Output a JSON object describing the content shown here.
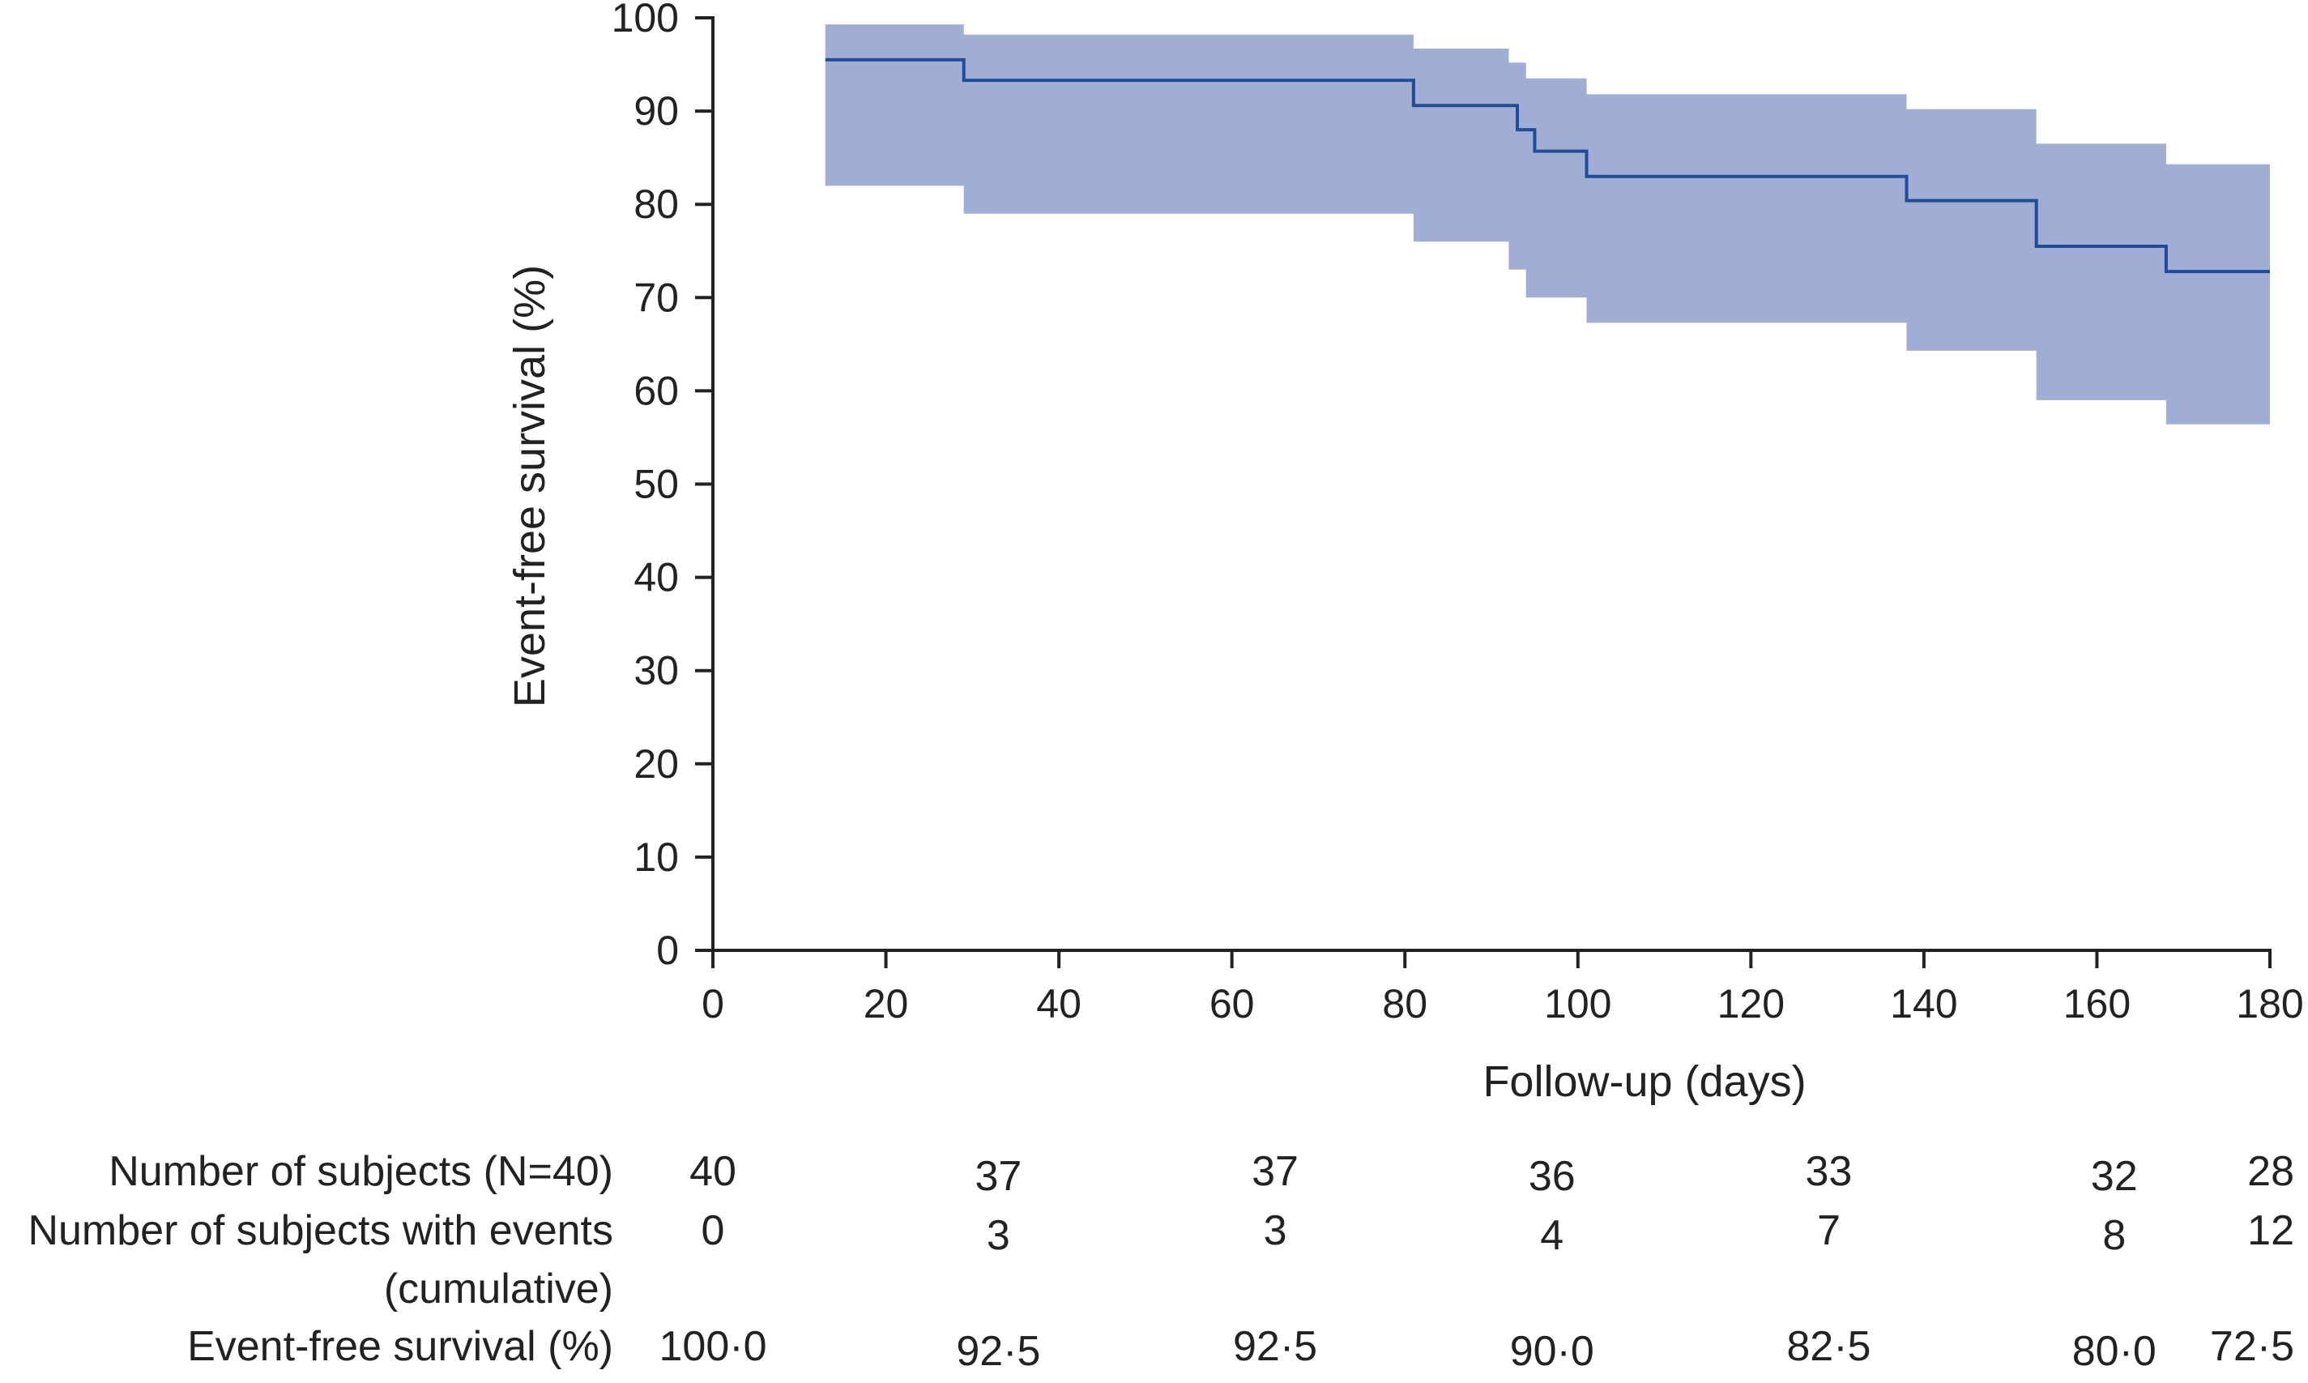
{
  "chart_data": {
    "type": "line",
    "subtype": "kaplan-meier-step",
    "title": "",
    "xlabel": "Follow-up (days)",
    "ylabel": "Event-free survival (%)",
    "xlim": [
      0,
      180
    ],
    "ylim": [
      0,
      100
    ],
    "x_ticks": [
      0,
      20,
      40,
      60,
      80,
      100,
      120,
      140,
      160,
      180
    ],
    "y_ticks": [
      0,
      10,
      20,
      30,
      40,
      50,
      60,
      70,
      80,
      90,
      100
    ],
    "grid": false,
    "colors": {
      "line": "#1f4e96",
      "band": "#a0aed5",
      "axis": "#222222"
    },
    "series": [
      {
        "name": "Event-free survival",
        "step_x": [
          13,
          29,
          81,
          93,
          95,
          101,
          138,
          153,
          168,
          180
        ],
        "step_y": [
          95.5,
          93.3,
          90.6,
          88.0,
          85.7,
          83.0,
          80.4,
          75.5,
          72.8,
          72.8
        ]
      }
    ],
    "confidence_band": {
      "step_x": [
        13,
        29,
        81,
        92,
        94,
        101,
        138,
        153,
        168,
        180
      ],
      "upper": [
        99.3,
        98.2,
        96.7,
        95.2,
        93.5,
        91.8,
        90.2,
        86.5,
        84.3,
        84.3
      ],
      "lower": [
        82.0,
        79.0,
        76.0,
        73.0,
        70.0,
        67.3,
        64.3,
        59.0,
        56.4,
        56.4
      ]
    },
    "risk_table": {
      "columns_x": [
        0,
        33,
        65,
        97,
        129,
        162,
        194
      ],
      "rows": [
        {
          "label": "Number of subjects (N=40)",
          "values": [
            "40",
            "37",
            "37",
            "36",
            "33",
            "32",
            "28"
          ]
        },
        {
          "label": "Number of subjects with events",
          "label2": "(cumulative)",
          "values": [
            "0",
            "3",
            "3",
            "4",
            "7",
            "8",
            "12"
          ]
        },
        {
          "label": "Event-free survival (%)",
          "values": [
            "100·0",
            "92·5",
            "92·5",
            "90·0",
            "82·5",
            "80·0",
            "72·5"
          ]
        }
      ]
    }
  }
}
